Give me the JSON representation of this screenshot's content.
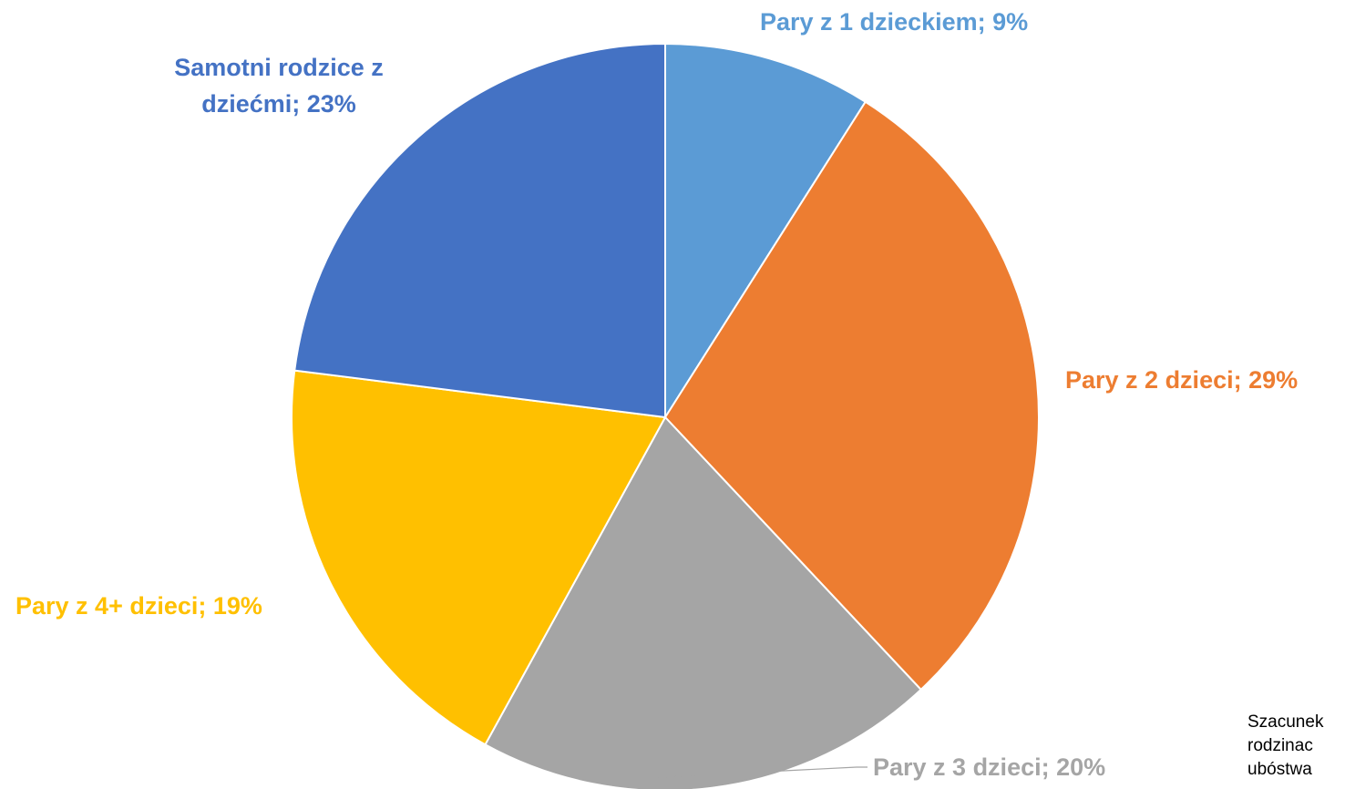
{
  "chart_data": {
    "type": "pie",
    "title": "",
    "slices": [
      {
        "label": "Pary z 1 dzieckiem",
        "value": 9,
        "display": "Pary z 1 dzieckiem; 9%",
        "color": "#5b9bd5"
      },
      {
        "label": "Pary z 2 dzieci",
        "value": 29,
        "display": "Pary z 2 dzieci; 29%",
        "color": "#ed7d31"
      },
      {
        "label": "Pary z 3 dzieci",
        "value": 20,
        "display": "Pary z 3 dzieci; 20%",
        "color": "#a5a5a5"
      },
      {
        "label": "Pary z 4+ dzieci",
        "value": 19,
        "display": "Pary z 4+ dzieci; 19%",
        "color": "#ffc000"
      },
      {
        "label": "Samotni rodzice z dziećmi",
        "value": 23,
        "display_lines": [
          "Samotni rodzice z",
          "dziećmi; 23%"
        ],
        "color": "#4472c4"
      }
    ],
    "legend": "none",
    "start_angle": "12 o'clock",
    "direction": "clockwise"
  },
  "note_lines": [
    "Szacunek",
    "rodzinac",
    "ubóstwa"
  ]
}
